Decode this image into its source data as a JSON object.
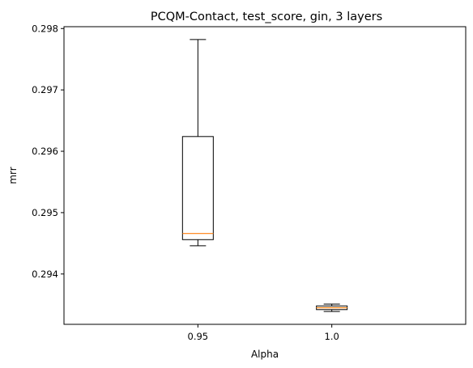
{
  "chart_data": {
    "type": "box",
    "title": "PCQM-Contact, test_score, gin, 3 layers",
    "xlabel": "Alpha",
    "ylabel": "mrr",
    "categories": [
      "0.95",
      "1.0"
    ],
    "ylim": [
      0.29318,
      0.29803
    ],
    "yticks": [
      "0.294",
      "0.295",
      "0.296",
      "0.297",
      "0.298"
    ],
    "boxes": [
      {
        "category": "0.95",
        "whisker_low": 0.29446,
        "q1": 0.29456,
        "median": 0.29466,
        "q3": 0.29624,
        "whisker_high": 0.29782
      },
      {
        "category": "1.0",
        "whisker_low": 0.29339,
        "q1": 0.29342,
        "median": 0.29345,
        "q3": 0.29348,
        "whisker_high": 0.29351
      }
    ],
    "box_color": "#000000",
    "median_color": "#ff7f0e",
    "grid": false,
    "legend": "none"
  }
}
